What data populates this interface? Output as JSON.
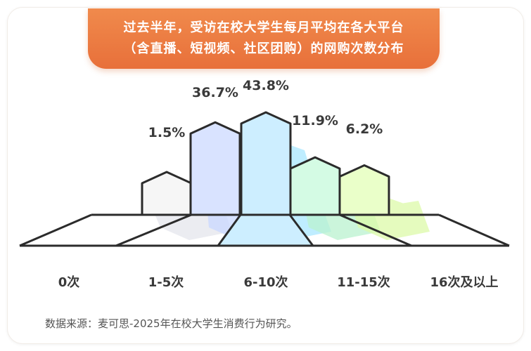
{
  "title_lines": [
    "过去半年，受访在校大学生每月平均在各大平台",
    "（含直播、短视频、社区团购）的网购次数分布"
  ],
  "source": "数据来源：麦可思-2025年在校大学生消费行为研究。",
  "chart_data": {
    "type": "bar",
    "categories": [
      "0次",
      "1-5次",
      "6-10次",
      "11-15次",
      "16次及以上"
    ],
    "values": [
      1.5,
      36.7,
      43.8,
      11.9,
      6.2
    ],
    "value_labels": [
      "1.5%",
      "36.7%",
      "43.8%",
      "11.9%",
      "6.2%"
    ],
    "title": "过去半年，受访在校大学生每月平均在各大平台（含直播、短视频、社区团购）的网购次数分布",
    "xlabel": "",
    "ylabel": "",
    "colors": [
      "#f6f6f6",
      "#d9e3ff",
      "#cdeeff",
      "#d4fbe4",
      "#eaffc9"
    ],
    "shadow_colors": [
      "#e4e6ec",
      "#c9d8ff",
      "#a9e7ff",
      "#b9f1cf",
      "#dcf9a8"
    ],
    "highlight_index": 2,
    "highlight_color": "#cdeeff"
  }
}
